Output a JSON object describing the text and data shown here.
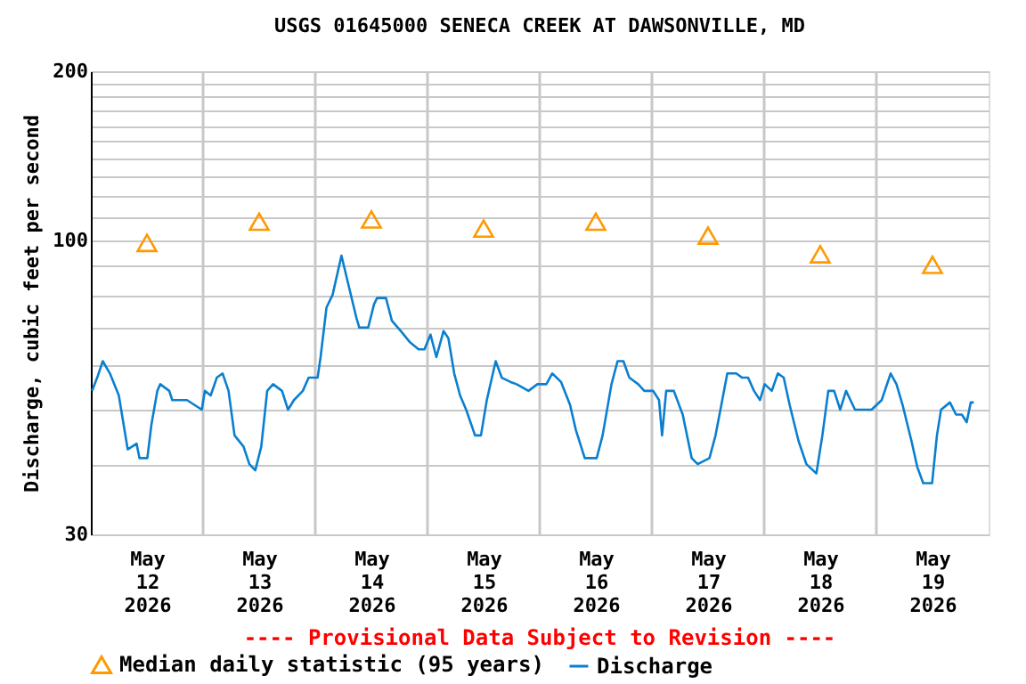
{
  "chart_data": {
    "type": "line",
    "title": "USGS 01645000 SENECA CREEK AT DAWSONVILLE, MD",
    "ylabel": "Discharge, cubic feet per second",
    "annotations": [
      "---- Provisional Data Subject to Revision ----"
    ],
    "log": "y",
    "grid": true,
    "legend": "bottom",
    "xlim": [
      "2026-05-12T00:00",
      "2026-05-20T00:00"
    ],
    "xticks": [
      {
        "value": "2026-05-12T12:00",
        "label": "May 12 2026"
      },
      {
        "value": "2026-05-13T12:00",
        "label": "May 13 2026"
      },
      {
        "value": "2026-05-14T12:00",
        "label": "May 14 2026"
      },
      {
        "value": "2026-05-15T12:00",
        "label": "May 15 2026"
      },
      {
        "value": "2026-05-16T12:00",
        "label": "May 16 2026"
      },
      {
        "value": "2026-05-17T12:00",
        "label": "May 17 2026"
      },
      {
        "value": "2026-05-18T12:00",
        "label": "May 18 2026"
      },
      {
        "value": "2026-05-19T12:00",
        "label": "May 19 2026"
      },
      {
        "value": "2026-05-13T00:00",
        "label": null
      },
      {
        "value": "2026-05-14T00:00",
        "label": null
      },
      {
        "value": "2026-05-15T00:00",
        "label": null
      },
      {
        "value": "2026-05-16T00:00",
        "label": null
      },
      {
        "value": "2026-05-17T00:00",
        "label": null
      },
      {
        "value": "2026-05-18T00:00",
        "label": null
      },
      {
        "value": "2026-05-19T00:00",
        "label": null
      }
    ],
    "ylim": [
      30,
      200
    ],
    "yticks": [
      30,
      {
        "value": 40,
        "label": null
      },
      {
        "value": 50,
        "label": null
      },
      {
        "value": 60,
        "label": null
      },
      {
        "value": 70,
        "label": null
      },
      {
        "value": 80,
        "label": null
      },
      {
        "value": 90,
        "label": null
      },
      100,
      {
        "value": 110,
        "label": null
      },
      {
        "value": 120,
        "label": null
      },
      {
        "value": 130,
        "label": null
      },
      {
        "value": 140,
        "label": null
      },
      {
        "value": 150,
        "label": null
      },
      {
        "value": 160,
        "label": null
      },
      {
        "value": 170,
        "label": null
      },
      {
        "value": 180,
        "label": null
      },
      {
        "value": 190,
        "label": null
      },
      200
    ],
    "series": [
      {
        "name": "Median daily statistic (95 years)",
        "type": "scatter",
        "marker": "triangle",
        "color": "#ff9900",
        "x": [
          "2026-05-12T12:00",
          "2026-05-13T12:00",
          "2026-05-14T12:00",
          "2026-05-15T12:00",
          "2026-05-16T12:00",
          "2026-05-17T12:00",
          "2026-05-18T12:00",
          "2026-05-19T12:00"
        ],
        "values": [
          99,
          108,
          109,
          105,
          108,
          102,
          94.5,
          90.5
        ]
      },
      {
        "name": "Discharge",
        "color": "#0a7fd0",
        "x": [
          "2026-05-12T00:16",
          "2026-05-12T01:31",
          "2026-05-12T02:33",
          "2026-05-12T04:05",
          "2026-05-12T05:59",
          "2026-05-12T07:53",
          "2026-05-12T09:47",
          "2026-05-12T10:24",
          "2026-05-12T12:05",
          "2026-05-12T12:57",
          "2026-05-12T14:13",
          "2026-05-12T14:51",
          "2026-05-12T16:46",
          "2026-05-12T17:25",
          "2026-05-12T20:34",
          "2026-05-12T23:44",
          "2026-05-13T00:23",
          "2026-05-13T01:38",
          "2026-05-13T02:56",
          "2026-05-13T04:11",
          "2026-05-13T05:27",
          "2026-05-13T06:44",
          "2026-05-13T08:39",
          "2026-05-13T09:54",
          "2026-05-13T11:10",
          "2026-05-13T12:27",
          "2026-05-13T13:43",
          "2026-05-13T14:58",
          "2026-05-13T16:53",
          "2026-05-13T18:10",
          "2026-05-13T19:26",
          "2026-05-13T21:20",
          "2026-05-13T22:35",
          "2026-05-14T00:30",
          "2026-05-14T01:08",
          "2026-05-14T02:24",
          "2026-05-14T03:42",
          "2026-05-14T05:36",
          "2026-05-14T06:51",
          "2026-05-14T08:46",
          "2026-05-14T09:25",
          "2026-05-14T11:19",
          "2026-05-14T12:34",
          "2026-05-14T13:13",
          "2026-05-14T15:07",
          "2026-05-14T16:23",
          "2026-05-14T18:17",
          "2026-05-14T20:11",
          "2026-05-14T22:06",
          "2026-05-14T23:21",
          "2026-05-15T00:39",
          "2026-05-15T01:54",
          "2026-05-15T03:26",
          "2026-05-15T04:28",
          "2026-05-15T05:43",
          "2026-05-15T06:58",
          "2026-05-15T08:16",
          "2026-05-15T10:10",
          "2026-05-15T11:26",
          "2026-05-15T12:41",
          "2026-05-15T14:35",
          "2026-05-15T15:53",
          "2026-05-15T17:47",
          "2026-05-15T19:03",
          "2026-05-15T21:36",
          "2026-05-15T23:30",
          "2026-05-16T01:25",
          "2026-05-16T02:40",
          "2026-05-16T04:34",
          "2026-05-16T06:29",
          "2026-05-16T07:44",
          "2026-05-16T09:38",
          "2026-05-16T12:11",
          "2026-05-16T13:27",
          "2026-05-16T15:21",
          "2026-05-16T16:39",
          "2026-05-16T17:54",
          "2026-05-16T19:10",
          "2026-05-16T21:04",
          "2026-05-16T22:22",
          "2026-05-17T00:16",
          "2026-05-17T01:31",
          "2026-05-17T02:10",
          "2026-05-17T03:03",
          "2026-05-17T04:41",
          "2026-05-17T06:35",
          "2026-05-17T08:30",
          "2026-05-17T09:47",
          "2026-05-17T12:18",
          "2026-05-17T13:36",
          "2026-05-17T14:51",
          "2026-05-17T16:07",
          "2026-05-17T18:01",
          "2026-05-17T19:19",
          "2026-05-17T20:34",
          "2026-05-17T21:50",
          "2026-05-17T23:07",
          "2026-05-18T00:07",
          "2026-05-18T01:38",
          "2026-05-18T02:56",
          "2026-05-18T04:11",
          "2026-05-18T05:27",
          "2026-05-18T07:21",
          "2026-05-18T09:02",
          "2026-05-18T11:10",
          "2026-05-18T12:27",
          "2026-05-18T13:43",
          "2026-05-18T14:58",
          "2026-05-18T16:16",
          "2026-05-18T17:31",
          "2026-05-18T19:26",
          "2026-05-18T22:58",
          "2026-05-19T01:08",
          "2026-05-19T03:03",
          "2026-05-19T04:18",
          "2026-05-19T05:36",
          "2026-05-19T07:30",
          "2026-05-19T08:46",
          "2026-05-19T10:01",
          "2026-05-19T11:55",
          "2026-05-19T12:57",
          "2026-05-19T13:50",
          "2026-05-19T15:44",
          "2026-05-19T17:02",
          "2026-05-19T18:17",
          "2026-05-19T19:19",
          "2026-05-19T20:11",
          "2026-05-19T20:50"
        ],
        "values": [
          54,
          57.5,
          61,
          58,
          53,
          42.5,
          43.5,
          41,
          41,
          47,
          54,
          55.5,
          54,
          52,
          52,
          50,
          54,
          53,
          57,
          58,
          54,
          45,
          43,
          40,
          39,
          43,
          54,
          55.5,
          54,
          50,
          52,
          54,
          57,
          57,
          62,
          76,
          80,
          94,
          85,
          73,
          70,
          70,
          77,
          79,
          79,
          72,
          69,
          66,
          64,
          64,
          68,
          62,
          69,
          67,
          58,
          53,
          50,
          45,
          45,
          52,
          61,
          57,
          56,
          55.5,
          54,
          55.5,
          55.5,
          58,
          56,
          51,
          46,
          41,
          41,
          45,
          55.5,
          61,
          61,
          57,
          55.5,
          54,
          54,
          52,
          45,
          54,
          54,
          49,
          41,
          40,
          41,
          45,
          51,
          58,
          58,
          57,
          57,
          54,
          52,
          55.5,
          54,
          58,
          57,
          51,
          44,
          40,
          38.5,
          45,
          54,
          54,
          50,
          54,
          50,
          50,
          52,
          58,
          55.5,
          51,
          44,
          39.5,
          37,
          37,
          45,
          50,
          51.5,
          49,
          49,
          47.5,
          51.5,
          51.5
        ]
      }
    ]
  }
}
